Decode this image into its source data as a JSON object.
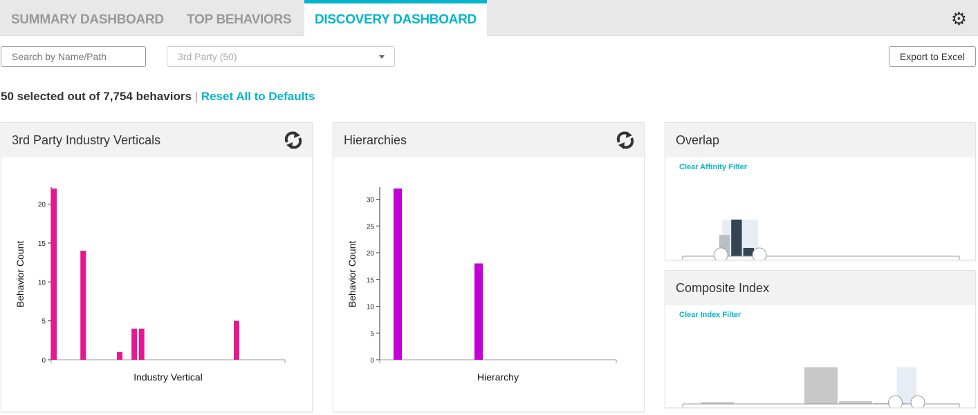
{
  "tabs": [
    {
      "label": "SUMMARY DASHBOARD",
      "active": false
    },
    {
      "label": "TOP BEHAVIORS",
      "active": false
    },
    {
      "label": "DISCOVERY DASHBOARD",
      "active": true
    }
  ],
  "icons": {
    "settings": "gear-icon",
    "refresh": "refresh-icon",
    "dropdown": "caret-down-icon"
  },
  "filters": {
    "search_placeholder": "Search by Name/Path",
    "select_value": "3rd Party (50)",
    "export_label": "Export to Excel"
  },
  "status": {
    "count_text": "50 selected out of 7,754 behaviors",
    "separator": "|",
    "reset_label": "Reset All to Defaults"
  },
  "colors": {
    "accent": "#00b5cc",
    "industry_bar": "#e8168f",
    "hierarchy_bar": "#c300d6",
    "hist_selected": "#334455",
    "hist_unselected": "#c8c8c8",
    "selection": "#e6edf4"
  },
  "panels": {
    "industry": {
      "title": "3rd Party Industry Verticals"
    },
    "hierarchy": {
      "title": "Hierarchies"
    },
    "overlap": {
      "title": "Overlap",
      "clear_label": "Clear Affinity Filter"
    },
    "composite": {
      "title": "Composite Index",
      "clear_label": "Clear Index Filter"
    }
  },
  "chart_data": [
    {
      "type": "bar",
      "xlabel": "Industry Vertical",
      "ylabel": "Behavior Count",
      "ylim": [
        0,
        22
      ],
      "yticks": [
        0,
        5,
        10,
        15,
        20
      ],
      "values": [
        22,
        0,
        0,
        0,
        14,
        0,
        0,
        0,
        0,
        1,
        0,
        4,
        4,
        0,
        0,
        0,
        0,
        0,
        0,
        0,
        0,
        0,
        0,
        0,
        0,
        5,
        0,
        0,
        0,
        0,
        0,
        0
      ]
    },
    {
      "type": "bar",
      "xlabel": "Hierarchy",
      "ylabel": "Behavior Count",
      "ylim": [
        0,
        32
      ],
      "yticks": [
        0,
        5,
        10,
        15,
        20,
        25,
        30
      ],
      "values": [
        32,
        0,
        0,
        18,
        0,
        0,
        0,
        0,
        0
      ]
    },
    {
      "type": "histogram",
      "xlabel": "Overlap",
      "xlim": [
        -5,
        110
      ],
      "xticks": [
        0,
        10,
        20,
        30,
        40,
        50,
        60,
        70,
        80,
        90,
        100,
        "110"
      ],
      "bins": [
        {
          "x0": 10,
          "x1": 15,
          "value": 18
        },
        {
          "x0": 15,
          "x1": 20,
          "value": 31
        },
        {
          "x0": 20,
          "x1": 25,
          "value": 7
        }
      ],
      "selection": [
        11,
        27
      ]
    },
    {
      "type": "histogram",
      "xlabel": "Index",
      "xlim": [
        -3,
        5
      ],
      "xticks": [
        -3,
        -2,
        -1,
        0,
        1,
        2,
        3,
        4,
        5
      ],
      "bins": [
        {
          "x0": -2.5,
          "x1": -1.5,
          "value": 2
        },
        {
          "x0": 0.5,
          "x1": 1.5,
          "value": 40
        },
        {
          "x0": 1.5,
          "x1": 2.5,
          "value": 3
        },
        {
          "x0": 2.5,
          "x1": 3.5,
          "value": 1
        }
      ],
      "selection": [
        3.15,
        3.8
      ]
    }
  ]
}
